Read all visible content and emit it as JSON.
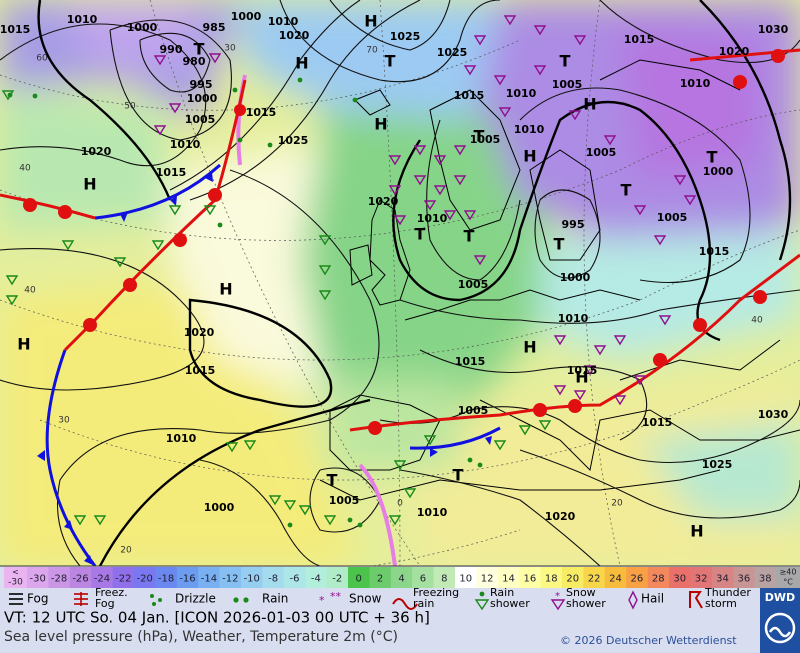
{
  "map": {
    "isobar_labels": [
      1015,
      1010,
      1000,
      990,
      985,
      1000,
      1010,
      1020,
      980,
      995,
      1000,
      1005,
      1010,
      1015,
      1020,
      1015,
      1025,
      1025,
      1015,
      1010,
      1005,
      1015,
      1020,
      1030,
      1010,
      1005,
      1000,
      1005,
      1015,
      1010,
      1005,
      1020,
      1010,
      995,
      1000,
      1005,
      1010,
      1015,
      1015,
      1005,
      1015,
      1030,
      1025,
      1025,
      1020,
      1015,
      1010,
      1000,
      1005,
      1010,
      1020
    ],
    "graticule_labels": [
      60,
      50,
      40,
      40,
      30,
      20,
      70,
      30,
      40,
      20,
      0
    ],
    "centers": [
      "H",
      "H",
      "H",
      "H",
      "H",
      "H",
      "H",
      "H",
      "H",
      "H",
      "H",
      "T",
      "T",
      "T",
      "T",
      "T",
      "T",
      "T",
      "T",
      "T",
      "T",
      "T"
    ]
  },
  "legend": {
    "temperature_low": {
      "top": "<",
      "bottom": "-30",
      "color": "#eab4f0"
    },
    "temperature": [
      {
        "value": -30,
        "color": "#dca6ec"
      },
      {
        "value": -28,
        "color": "#cc96e6"
      },
      {
        "value": -26,
        "color": "#bb86e2"
      },
      {
        "value": -24,
        "color": "#a878e6"
      },
      {
        "value": -22,
        "color": "#9070ea"
      },
      {
        "value": -20,
        "color": "#7a78f0"
      },
      {
        "value": -18,
        "color": "#6a88f0"
      },
      {
        "value": -16,
        "color": "#6c9cf0"
      },
      {
        "value": -14,
        "color": "#78b0f2"
      },
      {
        "value": -12,
        "color": "#86c0f2"
      },
      {
        "value": -10,
        "color": "#96cef2"
      },
      {
        "value": -8,
        "color": "#a4dcee"
      },
      {
        "value": -6,
        "color": "#ace6e6"
      },
      {
        "value": -4,
        "color": "#b2eedc"
      },
      {
        "value": -2,
        "color": "#b0ecc8"
      },
      {
        "value": 0,
        "color": "#4cc44c"
      },
      {
        "value": 2,
        "color": "#6ccc6c"
      },
      {
        "value": 4,
        "color": "#8cd68c"
      },
      {
        "value": 6,
        "color": "#a6e0a0"
      },
      {
        "value": 8,
        "color": "#c2eab4"
      },
      {
        "value": 10,
        "color": "#ffffff"
      },
      {
        "value": 12,
        "color": "#ffffe0"
      },
      {
        "value": 14,
        "color": "#ffffc4"
      },
      {
        "value": 16,
        "color": "#ffffa6"
      },
      {
        "value": 18,
        "color": "#fcf884"
      },
      {
        "value": 20,
        "color": "#f8ec64"
      },
      {
        "value": 22,
        "color": "#f8d64a"
      },
      {
        "value": 24,
        "color": "#f8bc3c"
      },
      {
        "value": 26,
        "color": "#f8a044"
      },
      {
        "value": 28,
        "color": "#f2885c"
      },
      {
        "value": 30,
        "color": "#ea706a"
      },
      {
        "value": 32,
        "color": "#e27676"
      },
      {
        "value": 34,
        "color": "#d68484"
      },
      {
        "value": 36,
        "color": "#c89494"
      },
      {
        "value": 38,
        "color": "#b8a2a2"
      }
    ],
    "temperature_high": {
      "top": "≥40",
      "bottom": "°C",
      "color": "#a8a8a8"
    },
    "weather": [
      [
        "Fog"
      ],
      [
        "Freez.",
        "Fog"
      ],
      [
        "Drizzle"
      ],
      [
        "Rain"
      ],
      [
        "Snow"
      ],
      [
        "Freezing",
        "rain"
      ],
      [
        "Rain",
        "shower"
      ],
      [
        "Snow",
        "shower"
      ],
      [
        "Hail"
      ],
      [
        "Thunder",
        "storm"
      ]
    ]
  },
  "footer": {
    "valid_time": "VT: 12 UTC So.  04 Jan. [ICON 2026-01-03  00 UTC + 36 h]",
    "description": "Sea level pressure (hPa), Weather, Temperature 2m (°C)",
    "copyright": "© 2026 Deutscher Wetterdienst",
    "logo": "DWD"
  }
}
